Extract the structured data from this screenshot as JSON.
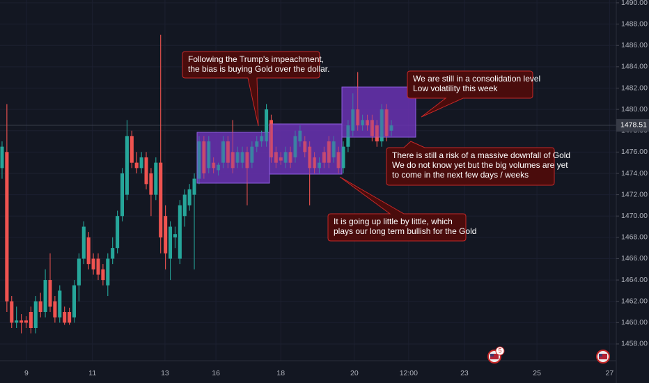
{
  "chart_data": {
    "type": "candlestick",
    "open": [
      1474.5,
      1476,
      1462,
      1460,
      1460.2,
      1460.2,
      1461,
      1459.5,
      1462,
      1461,
      1464,
      1462,
      1460.5,
      1461,
      1461,
      1460.5,
      1463.5,
      1466,
      1468,
      1466,
      1466,
      1465,
      1463.5,
      1466,
      1467,
      1470,
      1472,
      1477.5,
      1475,
      1474.5,
      1475.5,
      1474,
      1472,
      1475,
      1470,
      1466,
      1468,
      1466,
      1470,
      1471,
      1472,
      1473.5,
      1477,
      1474.5,
      1475,
      1474.3,
      1475,
      1477,
      1476,
      1475,
      1475,
      1476,
      1475,
      1476.5,
      1477,
      1477,
      1479,
      1476,
      1475.5,
      1475,
      1476,
      1475.5,
      1477,
      1477,
      1476.5,
      1475.5,
      1474.5,
      1476,
      1477,
      1475.5,
      1476,
      1474.5,
      1476.5,
      1478,
      1480,
      1478.5,
      1479,
      1479,
      1478.5,
      1477,
      1480,
      1478
    ],
    "high": [
      1477,
      1480.5,
      1462.5,
      1461.5,
      1460.8,
      1460.6,
      1461.5,
      1462.5,
      1462.8,
      1465,
      1466.5,
      1462.5,
      1463.5,
      1461.5,
      1461.4,
      1464,
      1466.5,
      1469.5,
      1468.5,
      1466.5,
      1466.5,
      1465.5,
      1466.5,
      1468,
      1470.5,
      1474.5,
      1479,
      1478,
      1476,
      1476,
      1476,
      1474.5,
      1475.5,
      1487,
      1471,
      1469.5,
      1469,
      1471.5,
      1472.5,
      1473,
      1474,
      1477.5,
      1477.5,
      1477.5,
      1475.5,
      1475,
      1477.5,
      1477.5,
      1479,
      1476.5,
      1476.5,
      1476.5,
      1477,
      1477.5,
      1478,
      1480.5,
      1479.5,
      1476.5,
      1476,
      1476.5,
      1476.5,
      1478,
      1478.5,
      1477.5,
      1477,
      1476,
      1475.5,
      1476.5,
      1477.5,
      1477.5,
      1476.5,
      1477,
      1479,
      1481.5,
      1483.5,
      1479.5,
      1479.5,
      1479.5,
      1479,
      1480.5,
      1480.5,
      1479
    ],
    "low": [
      1473.5,
      1461,
      1459.5,
      1459.5,
      1459,
      1459.5,
      1459,
      1459,
      1460.5,
      1460.5,
      1461,
      1460,
      1460,
      1459.8,
      1459.8,
      1460,
      1462,
      1465.5,
      1465,
      1464.5,
      1464,
      1463.5,
      1462.5,
      1465.5,
      1466.5,
      1469.5,
      1471.5,
      1474.5,
      1474,
      1474,
      1472.5,
      1470,
      1471.5,
      1466.5,
      1465,
      1464,
      1467,
      1465.5,
      1469,
      1470.5,
      1465,
      1473,
      1473.5,
      1474,
      1474,
      1473.8,
      1474.5,
      1474.5,
      1474,
      1474.5,
      1474.5,
      1471,
      1474.5,
      1476,
      1476.5,
      1476.5,
      1475,
      1474.5,
      1474.8,
      1474.5,
      1474.5,
      1475,
      1476.5,
      1475.5,
      1471,
      1474,
      1474,
      1474.5,
      1474.5,
      1475,
      1474,
      1474,
      1476,
      1477.5,
      1478,
      1478,
      1478,
      1477,
      1476.5,
      1476.5,
      1477,
      1477.5
    ],
    "close": [
      1476.5,
      1462,
      1460,
      1460.2,
      1460,
      1460,
      1459.5,
      1462,
      1461,
      1464,
      1461.5,
      1460.5,
      1463,
      1460,
      1460,
      1463.5,
      1466,
      1469,
      1465.5,
      1465,
      1464.5,
      1464,
      1466,
      1467,
      1470,
      1474,
      1477.5,
      1475,
      1474.5,
      1475.5,
      1473,
      1472,
      1475,
      1468,
      1466.5,
      1469,
      1468.3,
      1471,
      1472,
      1472.5,
      1473.5,
      1477,
      1474,
      1477,
      1474.5,
      1474.8,
      1477,
      1475,
      1474.5,
      1476,
      1476,
      1474.5,
      1476.5,
      1477,
      1477.5,
      1480,
      1475.5,
      1475,
      1475.2,
      1476,
      1475,
      1477.5,
      1478,
      1476,
      1474.5,
      1474.5,
      1475,
      1475,
      1475,
      1477,
      1474.5,
      1476.5,
      1478.5,
      1480,
      1478.5,
      1479,
      1478.5,
      1477.5,
      1477,
      1480,
      1477.5,
      1478.5
    ],
    "up_color": "#26a69a",
    "down_color": "#ef5350",
    "xlim": [
      -0.43,
      127.8
    ],
    "xticks": [
      {
        "value": 5.07,
        "label": "9"
      },
      {
        "value": 18.8,
        "label": "11"
      },
      {
        "value": 33.9,
        "label": "13"
      },
      {
        "value": 44.5,
        "label": "16"
      },
      {
        "value": 58,
        "label": "18"
      },
      {
        "value": 73.3,
        "label": "20"
      },
      {
        "value": 84.6,
        "label": "12:00"
      },
      {
        "value": 96.2,
        "label": "23"
      },
      {
        "value": 111.3,
        "label": "25"
      },
      {
        "value": 126.4,
        "label": "27"
      }
    ],
    "ylim": [
      1456.43,
      1490.26
    ],
    "yticks": [
      {
        "value": 1458,
        "label": "1458.00"
      },
      {
        "value": 1460,
        "label": "1460.00"
      },
      {
        "value": 1462,
        "label": "1462.00"
      },
      {
        "value": 1464,
        "label": "1464.00"
      },
      {
        "value": 1466,
        "label": "1466.00"
      },
      {
        "value": 1468,
        "label": "1468.00"
      },
      {
        "value": 1470,
        "label": "1470.00"
      },
      {
        "value": 1472,
        "label": "1472.00"
      },
      {
        "value": 1474,
        "label": "1474.00"
      },
      {
        "value": 1476,
        "label": "1476.00"
      },
      {
        "value": 1478,
        "label": "1478.00"
      },
      {
        "value": 1480,
        "label": "1480.00"
      },
      {
        "value": 1482,
        "label": "1482.00"
      },
      {
        "value": 1484,
        "label": "1484.00"
      },
      {
        "value": 1486,
        "label": "1486.00"
      },
      {
        "value": 1488,
        "label": "1488.00"
      },
      {
        "value": 1490,
        "label": "1490.00"
      }
    ],
    "grid": true,
    "current_price": 1478.51,
    "annotations": [
      {
        "lines": [
          "Following the Trump's impeachment,",
          "the bias is buying Gold over the dollar."
        ]
      },
      {
        "lines": [
          "We are still in a consolidation level",
          "Low volatility this week"
        ]
      },
      {
        "lines": [
          "There is still a risk of a massive downfall of Gold",
          "We do not know yet but the big volumes are yet",
          "to come in the next few days / weeks"
        ]
      },
      {
        "lines": [
          "It is going up little by little, which",
          "plays our long term bullish for the Gold"
        ]
      }
    ],
    "event_badge": "5"
  }
}
